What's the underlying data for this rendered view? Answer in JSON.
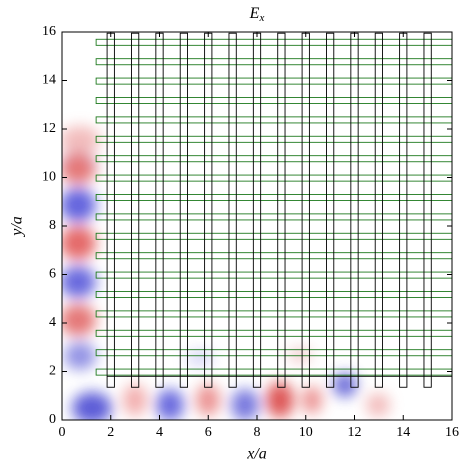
{
  "chart_data": {
    "type": "field",
    "title": "E",
    "title_subscript": "x",
    "xlabel": "x/a",
    "ylabel": "y/a",
    "xlim": [
      0,
      16
    ],
    "ylim": [
      0,
      16
    ],
    "xticks": [
      0,
      2,
      4,
      6,
      8,
      10,
      12,
      14,
      16
    ],
    "yticks": [
      0,
      2,
      4,
      6,
      8,
      10,
      12,
      14,
      16
    ]
  }
}
